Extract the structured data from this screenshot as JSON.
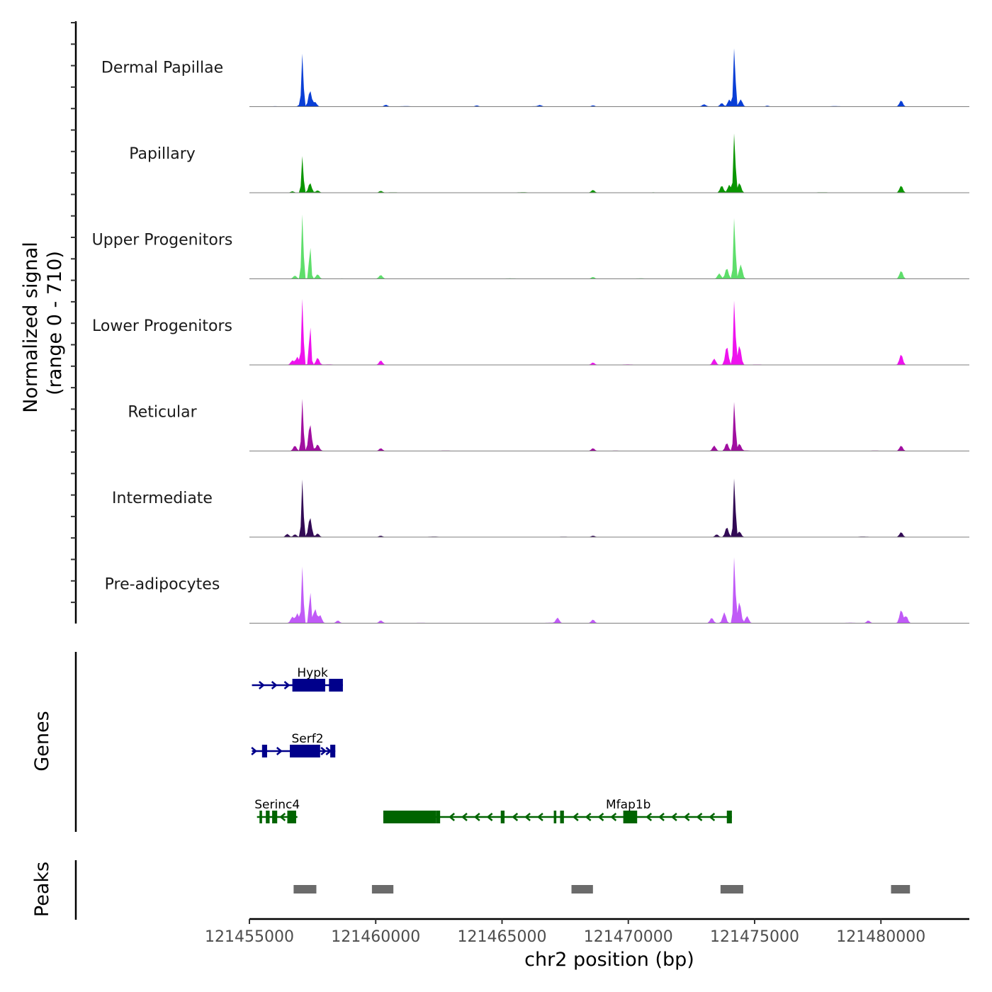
{
  "chart_data": {
    "type": "coverage",
    "y_axis_title_line1": "Normalized signal",
    "y_axis_title_line2": "(range 0 - 710)",
    "genes_axis_title": "Genes",
    "peaks_axis_title": "Peaks",
    "xlabel": "chr2 position (bp)",
    "xlim": [
      121455000,
      121483500
    ],
    "y_range": [
      0,
      710
    ],
    "x_ticks": [
      {
        "value": 121455000,
        "label": "121455000"
      },
      {
        "value": 121460000,
        "label": "121460000"
      },
      {
        "value": 121465000,
        "label": "121465000"
      },
      {
        "value": 121470000,
        "label": "121470000"
      },
      {
        "value": 121475000,
        "label": "121475000"
      },
      {
        "value": 121480000,
        "label": "121480000"
      }
    ],
    "peak_positions": [
      121457100,
      121457400,
      121460200,
      121468800,
      121473300,
      121474200,
      121480800
    ],
    "tracks": [
      {
        "name": "Dermal Papillae",
        "color": "#0a3fd6",
        "peaks": [
          [
            121457000,
            22
          ],
          [
            121457100,
            600
          ],
          [
            121457400,
            180
          ],
          [
            121457600,
            50
          ],
          [
            121460400,
            20
          ],
          [
            121464000,
            12
          ],
          [
            121466500,
            15
          ],
          [
            121468600,
            14
          ],
          [
            121473000,
            22
          ],
          [
            121473700,
            40
          ],
          [
            121474000,
            80
          ],
          [
            121474200,
            690
          ],
          [
            121474450,
            80
          ],
          [
            121480800,
            70
          ],
          [
            121475500,
            10
          ]
        ]
      },
      {
        "name": "Papillary",
        "color": "#0a9600",
        "peaks": [
          [
            121456700,
            15
          ],
          [
            121457100,
            420
          ],
          [
            121457400,
            110
          ],
          [
            121457700,
            25
          ],
          [
            121460200,
            20
          ],
          [
            121468600,
            30
          ],
          [
            121473700,
            80
          ],
          [
            121474000,
            90
          ],
          [
            121474200,
            700
          ],
          [
            121474400,
            110
          ],
          [
            121480800,
            80
          ]
        ]
      },
      {
        "name": "Upper Progenitors",
        "color": "#5ede6b",
        "peaks": [
          [
            121456800,
            35
          ],
          [
            121457100,
            740
          ],
          [
            121457400,
            390
          ],
          [
            121457700,
            50
          ],
          [
            121460200,
            40
          ],
          [
            121468600,
            20
          ],
          [
            121473600,
            60
          ],
          [
            121473900,
            120
          ],
          [
            121474200,
            720
          ],
          [
            121474450,
            160
          ],
          [
            121480800,
            90
          ]
        ]
      },
      {
        "name": "Lower Progenitors",
        "color": "#ee12ee",
        "peaks": [
          [
            121456700,
            50
          ],
          [
            121456900,
            90
          ],
          [
            121457100,
            760
          ],
          [
            121457400,
            470
          ],
          [
            121457700,
            80
          ],
          [
            121460200,
            50
          ],
          [
            121468600,
            25
          ],
          [
            121473400,
            70
          ],
          [
            121473900,
            210
          ],
          [
            121474200,
            760
          ],
          [
            121474400,
            220
          ],
          [
            121480800,
            120
          ]
        ]
      },
      {
        "name": "Reticular",
        "color": "#a00fa0",
        "peaks": [
          [
            121456800,
            60
          ],
          [
            121457100,
            600
          ],
          [
            121457400,
            300
          ],
          [
            121457700,
            70
          ],
          [
            121460200,
            30
          ],
          [
            121468600,
            30
          ],
          [
            121473400,
            60
          ],
          [
            121473900,
            90
          ],
          [
            121474200,
            580
          ],
          [
            121474400,
            80
          ],
          [
            121480800,
            60
          ]
        ]
      },
      {
        "name": "Intermediate",
        "color": "#320a55",
        "peaks": [
          [
            121456500,
            35
          ],
          [
            121456800,
            30
          ],
          [
            121457100,
            660
          ],
          [
            121457400,
            220
          ],
          [
            121457700,
            40
          ],
          [
            121460200,
            15
          ],
          [
            121468600,
            15
          ],
          [
            121473500,
            30
          ],
          [
            121473900,
            110
          ],
          [
            121474200,
            690
          ],
          [
            121474400,
            60
          ],
          [
            121480800,
            55
          ]
        ]
      },
      {
        "name": "Pre-adipocytes",
        "color": "#c05af7",
        "peaks": [
          [
            121456700,
            70
          ],
          [
            121456900,
            110
          ],
          [
            121457100,
            650
          ],
          [
            121457400,
            380
          ],
          [
            121457600,
            160
          ],
          [
            121457800,
            90
          ],
          [
            121458500,
            30
          ],
          [
            121460200,
            30
          ],
          [
            121467200,
            60
          ],
          [
            121468600,
            40
          ],
          [
            121473300,
            60
          ],
          [
            121473800,
            120
          ],
          [
            121474200,
            780
          ],
          [
            121474400,
            240
          ],
          [
            121474700,
            80
          ],
          [
            121479500,
            30
          ],
          [
            121480800,
            150
          ],
          [
            121481000,
            80
          ]
        ]
      }
    ],
    "genes": [
      {
        "name": "Hypk",
        "strand": "+",
        "color": "#00008b",
        "row": 0,
        "line": [
          121455100,
          121458700
        ],
        "label_pos": 121457500,
        "exons": [
          [
            121456700,
            121458000
          ],
          [
            121458150,
            121458700
          ]
        ],
        "arrows": [
          121455500,
          121456000,
          121456500
        ]
      },
      {
        "name": "Serf2",
        "strand": "+",
        "color": "#00008b",
        "row": 1,
        "line": [
          121455100,
          121458400
        ],
        "label_pos": 121457300,
        "exons": [
          [
            121455500,
            121455700
          ],
          [
            121456600,
            121457800
          ],
          [
            121458200,
            121458400
          ]
        ],
        "arrows": [
          121455200,
          121456200,
          121457950,
          121458150
        ]
      },
      {
        "name": "Serinc4",
        "strand": "-",
        "color": "#006400",
        "row": 2,
        "line": [
          121455300,
          121456900
        ],
        "label_pos": 121456100,
        "exons": [
          [
            121455400,
            121455500
          ],
          [
            121455650,
            121455800
          ],
          [
            121455900,
            121456100
          ],
          [
            121456500,
            121456850
          ]
        ],
        "arrows": [
          121456300
        ]
      },
      {
        "name": "Mfap1b",
        "strand": "-",
        "color": "#006400",
        "row": 2,
        "line": [
          121460300,
          121474100
        ],
        "label_pos": 121470000,
        "exons": [
          [
            121460300,
            121462400
          ],
          [
            121462400,
            121462550
          ],
          [
            121464950,
            121465100
          ],
          [
            121467050,
            121467150
          ],
          [
            121467300,
            121467450
          ],
          [
            121469800,
            121470350
          ],
          [
            121473900,
            121474100
          ]
        ],
        "arrows": [
          121463000,
          121463500,
          121464000,
          121464500,
          121465500,
          121466000,
          121466500,
          121467900,
          121468400,
          121468900,
          121469400,
          121470800,
          121471300,
          121471800,
          121472300,
          121472800,
          121473300
        ]
      }
    ],
    "peak_regions": [
      [
        121456750,
        121457650
      ],
      [
        121459850,
        121460700
      ],
      [
        121467750,
        121468600
      ],
      [
        121473650,
        121474550
      ],
      [
        121480400,
        121481150
      ]
    ]
  }
}
